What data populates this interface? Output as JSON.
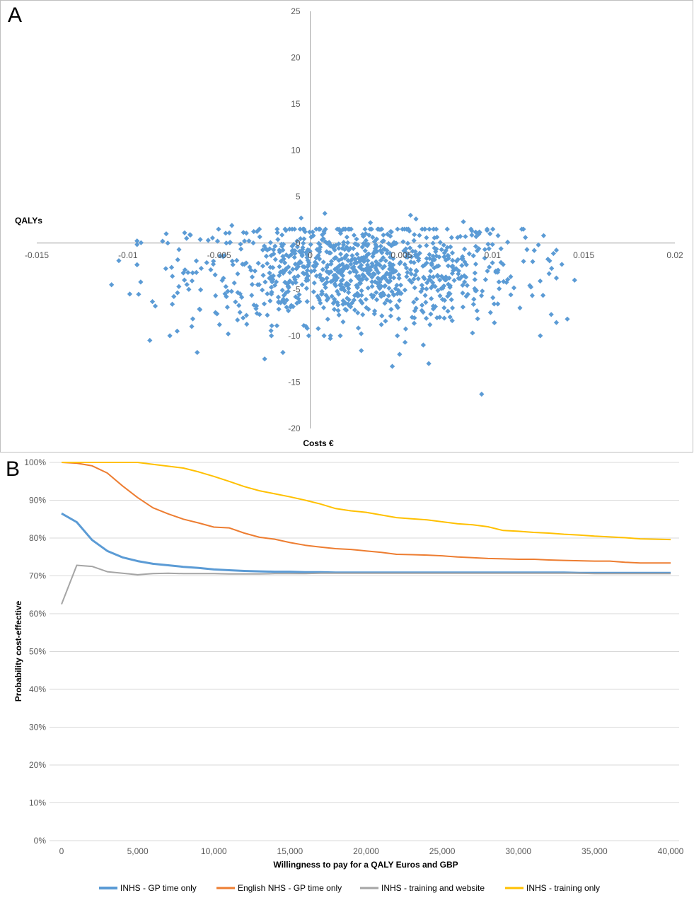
{
  "chart_data": [
    {
      "panel": "A",
      "type": "scatter",
      "xlabel": "Costs €",
      "ylabel": "QALYs",
      "xlim": [
        -0.015,
        0.02
      ],
      "ylim": [
        -20,
        25
      ],
      "x_ticks": [
        -0.015,
        -0.01,
        -0.005,
        0,
        0.005,
        0.01,
        0.015,
        0.02
      ],
      "x_tick_labels": [
        "-0.015",
        "-0.01",
        "-0.005",
        "0",
        "0.005",
        "0.01",
        "0.015",
        "0.02"
      ],
      "y_ticks": [
        -20,
        -15,
        -10,
        -5,
        0,
        5,
        10,
        15,
        20,
        25
      ],
      "y_tick_labels": [
        "-20",
        "-15",
        "-10",
        "-5",
        "0",
        "5",
        "10",
        "15",
        "20",
        "25"
      ],
      "marker_color": "#5B9BD5",
      "grid": false,
      "points_estimated_distribution": {
        "x_mean": 0.0025,
        "x_sd": 0.0045,
        "y_mean": -3.0,
        "y_sd": 2.8,
        "count": 1000
      },
      "points": [
        [
          -0.0105,
          -1.9
        ],
        [
          -0.0109,
          -4.5
        ],
        [
          -0.0099,
          -5.5
        ],
        [
          -0.0088,
          -10.5
        ],
        [
          -0.0093,
          -4.2
        ],
        [
          -0.0062,
          -11.8
        ],
        [
          -0.0025,
          -12.5
        ],
        [
          -0.0073,
          -9.5
        ],
        [
          -0.0085,
          -6.8
        ],
        [
          -0.0045,
          -9.8
        ],
        [
          -0.0065,
          -9.0
        ],
        [
          -0.0015,
          -11.8
        ],
        [
          0.0045,
          -13.3
        ],
        [
          0.0049,
          -12.0
        ],
        [
          0.0065,
          -13.0
        ],
        [
          0.0094,
          -16.3
        ],
        [
          0.0141,
          -8.2
        ],
        [
          0.0145,
          -4.0
        ],
        [
          0.0138,
          -2.3
        ],
        [
          0.0131,
          -3.3
        ],
        [
          0.0128,
          0.8
        ],
        [
          0.0122,
          -2.0
        ],
        [
          0.0118,
          0.6
        ],
        [
          0.0103,
          0.8
        ],
        [
          0.0091,
          0.7
        ],
        [
          0.0008,
          3.2
        ],
        [
          -0.0005,
          2.7
        ],
        [
          0.0055,
          3.0
        ],
        [
          0.0058,
          2.6
        ],
        [
          0.0084,
          2.3
        ],
        [
          0.0033,
          2.2
        ],
        [
          -0.0043,
          1.9
        ],
        [
          -0.0081,
          0.2
        ],
        [
          -0.0079,
          1.0
        ],
        [
          -0.0066,
          0.9
        ],
        [
          -0.0072,
          -0.7
        ],
        [
          0.0011,
          -10.3
        ],
        [
          0.0028,
          -11.6
        ],
        [
          0.0062,
          -11.0
        ],
        [
          0.0052,
          -10.7
        ],
        [
          0.0089,
          -9.7
        ],
        [
          0.0101,
          -8.6
        ],
        [
          0.0078,
          -7.0
        ],
        [
          0.0115,
          -7.0
        ],
        [
          -0.0035,
          -7.8
        ],
        [
          -0.0052,
          -7.5
        ],
        [
          -0.0012,
          -7.3
        ],
        [
          0.0018,
          -8.5
        ],
        [
          0.0039,
          -8.8
        ],
        [
          0.0071,
          -8.0
        ]
      ]
    },
    {
      "panel": "B",
      "type": "line",
      "xlabel": "Willingness to pay for a QALY Euros and GBP",
      "ylabel": "Probability cost-effective",
      "xlim": [
        0,
        40000
      ],
      "ylim": [
        0,
        1
      ],
      "x_ticks": [
        0,
        5000,
        10000,
        15000,
        20000,
        25000,
        30000,
        35000,
        40000
      ],
      "x_tick_labels": [
        "0",
        "5,000",
        "10,000",
        "15,000",
        "20,000",
        "25,000",
        "30,000",
        "35,000",
        "40,000"
      ],
      "y_ticks": [
        0,
        0.1,
        0.2,
        0.3,
        0.4,
        0.5,
        0.6,
        0.7,
        0.8,
        0.9,
        1.0
      ],
      "y_tick_labels": [
        "0%",
        "10%",
        "20%",
        "30%",
        "40%",
        "50%",
        "60%",
        "70%",
        "80%",
        "90%",
        "100%"
      ],
      "grid": true,
      "legend": "bottom",
      "x": [
        0,
        1000,
        2000,
        3000,
        4000,
        5000,
        6000,
        7000,
        8000,
        9000,
        10000,
        11000,
        12000,
        13000,
        14000,
        15000,
        16000,
        17000,
        18000,
        19000,
        20000,
        21000,
        22000,
        23000,
        24000,
        25000,
        26000,
        27000,
        28000,
        29000,
        30000,
        31000,
        32000,
        33000,
        34000,
        35000,
        36000,
        37000,
        38000,
        39000,
        40000
      ],
      "series": [
        {
          "name": "INHS - GP time only",
          "color": "#5B9BD5",
          "width": 3,
          "values": [
            0.865,
            0.842,
            0.795,
            0.766,
            0.749,
            0.739,
            0.732,
            0.728,
            0.724,
            0.721,
            0.717,
            0.715,
            0.713,
            0.712,
            0.711,
            0.711,
            0.71,
            0.71,
            0.709,
            0.709,
            0.709,
            0.709,
            0.709,
            0.709,
            0.709,
            0.709,
            0.709,
            0.709,
            0.709,
            0.709,
            0.709,
            0.709,
            0.709,
            0.709,
            0.708,
            0.708,
            0.708,
            0.708,
            0.708,
            0.708,
            0.708
          ]
        },
        {
          "name": "English NHS  - GP time only",
          "color": "#ED7D31",
          "width": 2,
          "values": [
            1.0,
            0.998,
            0.991,
            0.972,
            0.938,
            0.907,
            0.88,
            0.864,
            0.85,
            0.84,
            0.829,
            0.827,
            0.813,
            0.802,
            0.797,
            0.788,
            0.781,
            0.776,
            0.772,
            0.77,
            0.766,
            0.762,
            0.757,
            0.756,
            0.755,
            0.753,
            0.75,
            0.748,
            0.746,
            0.745,
            0.744,
            0.744,
            0.742,
            0.741,
            0.74,
            0.739,
            0.739,
            0.736,
            0.734,
            0.734,
            0.734
          ]
        },
        {
          "name": "INHS - training and website",
          "color": "#A5A5A5",
          "width": 2,
          "values": [
            0.625,
            0.728,
            0.725,
            0.711,
            0.707,
            0.703,
            0.706,
            0.707,
            0.706,
            0.706,
            0.706,
            0.705,
            0.705,
            0.705,
            0.706,
            0.706,
            0.706,
            0.707,
            0.707,
            0.707,
            0.707,
            0.707,
            0.707,
            0.707,
            0.707,
            0.707,
            0.707,
            0.707,
            0.707,
            0.707,
            0.707,
            0.707,
            0.707,
            0.707,
            0.707,
            0.706,
            0.706,
            0.706,
            0.706,
            0.706,
            0.706
          ]
        },
        {
          "name": "INHS - training only",
          "color": "#FFC000",
          "width": 2,
          "values": [
            1.0,
            1.0,
            1.0,
            1.0,
            1.0,
            1.0,
            0.995,
            0.99,
            0.985,
            0.975,
            0.963,
            0.95,
            0.936,
            0.925,
            0.917,
            0.909,
            0.9,
            0.89,
            0.878,
            0.872,
            0.868,
            0.861,
            0.854,
            0.851,
            0.848,
            0.843,
            0.838,
            0.835,
            0.83,
            0.82,
            0.818,
            0.815,
            0.813,
            0.81,
            0.808,
            0.805,
            0.803,
            0.801,
            0.798,
            0.797,
            0.796
          ]
        }
      ]
    }
  ],
  "panels": {
    "a_label": "A",
    "b_label": "B"
  }
}
